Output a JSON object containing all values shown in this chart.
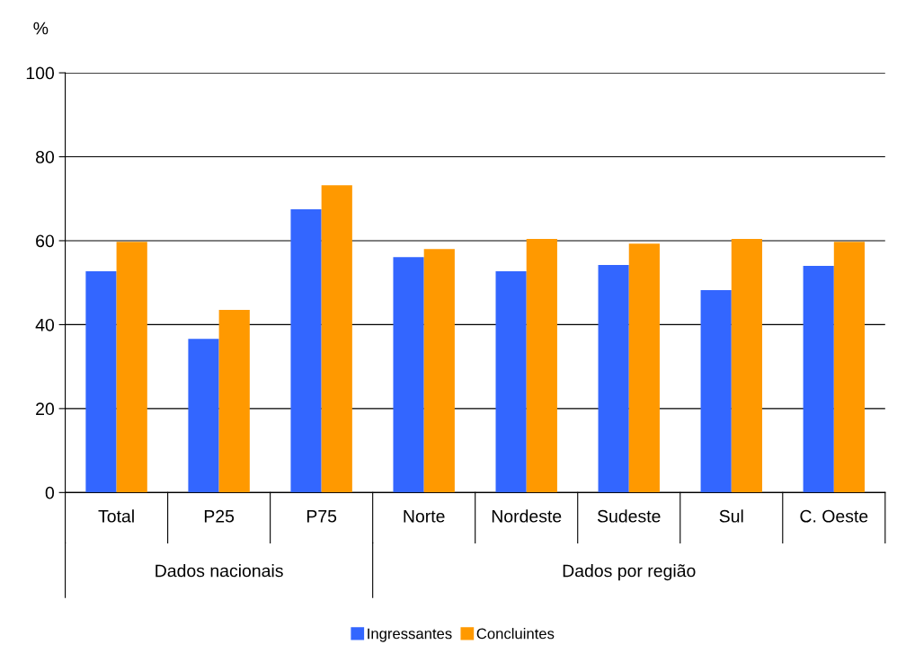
{
  "chart_data": {
    "type": "bar",
    "ylabel": "%",
    "categories": [
      "Total",
      "P25",
      "P75",
      "Norte",
      "Nordeste",
      "Sudeste",
      "Sul",
      "C. Oeste"
    ],
    "series": [
      {
        "name": "Ingressantes",
        "color": "#3366ff",
        "values": [
          52.7,
          36.6,
          67.5,
          56.1,
          52.7,
          54.2,
          48.2,
          54.0
        ]
      },
      {
        "name": "Concluintes",
        "color": "#ff9900",
        "values": [
          59.7,
          43.5,
          73.2,
          58.0,
          60.4,
          59.3,
          60.4,
          59.7
        ]
      }
    ],
    "annotations": [
      "Dados nacionais",
      "Dados por região"
    ],
    "ylim": [
      0,
      100
    ],
    "yticks": [
      0,
      20,
      40,
      60,
      80,
      100
    ],
    "grid": "y",
    "legend": "bottom"
  }
}
